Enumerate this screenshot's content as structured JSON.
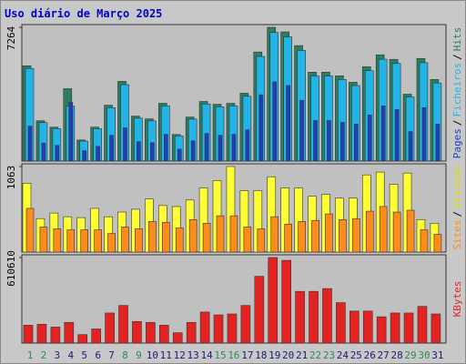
{
  "chart_data": [
    {
      "type": "bar",
      "title": "Uso diário de Março 2025",
      "ylim": [
        0,
        7264
      ],
      "yticks": [
        7264
      ],
      "legend_separator": "/",
      "series": [
        {
          "name": "Pages",
          "color": "#1f3fbf",
          "values": [
            1900,
            980,
            850,
            3184,
            560,
            800,
            1400,
            1800,
            1050,
            1000,
            1450,
            650,
            1100,
            1500,
            1400,
            1450,
            1700,
            3600,
            4300,
            4100,
            3300,
            2200,
            2200,
            2100,
            2000,
            2500,
            3000,
            2800,
            1600,
            2900,
            2000
          ]
        },
        {
          "name": "Ficheiros",
          "color": "#22b4e6",
          "values": [
            5030,
            2090,
            1760,
            2980,
            1080,
            1760,
            2900,
            4150,
            2330,
            2180,
            3000,
            1370,
            2280,
            3100,
            2950,
            3000,
            3520,
            5680,
            6980,
            6740,
            6010,
            4620,
            4620,
            4430,
            4100,
            4910,
            5530,
            5300,
            3480,
            5340,
            4240
          ]
        },
        {
          "name": "Hits",
          "color": "#2a7f5f",
          "values": [
            5174,
            2189,
            1841,
            3931,
            1144,
            1841,
            3035,
            4329,
            2438,
            2289,
            3135,
            1443,
            2388,
            3234,
            3085,
            3135,
            3682,
            5921,
            7264,
            7015,
            6269,
            4826,
            4826,
            4627,
            4279,
            5125,
            5771,
            5523,
            3632,
            5572,
            4428
          ]
        }
      ]
    },
    {
      "type": "bar",
      "ylim": [
        0,
        1063
      ],
      "yticks": [
        1063
      ],
      "legend_separator": "/",
      "series": [
        {
          "name": "Sites",
          "color": "#ff8c1a",
          "values": [
            543,
            312,
            289,
            277,
            277,
            277,
            231,
            312,
            289,
            381,
            370,
            300,
            404,
            358,
            451,
            451,
            312,
            289,
            439,
            347,
            381,
            393,
            474,
            404,
            416,
            508,
            566,
            497,
            520,
            277,
            220
          ]
        },
        {
          "name": "Visitas",
          "color": "#ffff33",
          "values": [
            855,
            416,
            485,
            439,
            428,
            543,
            439,
            497,
            532,
            659,
            578,
            566,
            647,
            797,
            890,
            1063,
            763,
            763,
            936,
            797,
            797,
            693,
            716,
            670,
            670,
            959,
            994,
            843,
            982,
            404,
            358
          ]
        }
      ]
    },
    {
      "type": "bar",
      "ylim": [
        0,
        610610
      ],
      "yticks": [
        610610
      ],
      "categories": [
        "1",
        "2",
        "3",
        "4",
        "5",
        "6",
        "7",
        "8",
        "9",
        "10",
        "11",
        "12",
        "13",
        "14",
        "15",
        "16",
        "17",
        "18",
        "19",
        "20",
        "21",
        "22",
        "23",
        "24",
        "25",
        "26",
        "27",
        "28",
        "29",
        "30",
        "31"
      ],
      "category_colors": [
        "#2a8a5a",
        "#2a8a5a",
        "#1a1a7a",
        "#1a1a7a",
        "#1a1a7a",
        "#1a1a7a",
        "#1a1a7a",
        "#2a8a5a",
        "#2a8a5a",
        "#1a1a7a",
        "#1a1a7a",
        "#1a1a7a",
        "#1a1a7a",
        "#1a1a7a",
        "#2a8a5a",
        "#2a8a5a",
        "#1a1a7a",
        "#1a1a7a",
        "#1a1a7a",
        "#1a1a7a",
        "#1a1a7a",
        "#2a8a5a",
        "#2a8a5a",
        "#1a1a7a",
        "#1a1a7a",
        "#1a1a7a",
        "#1a1a7a",
        "#1a1a7a",
        "#2a8a5a",
        "#2a8a5a",
        "#1a1a7a"
      ],
      "series": [
        {
          "name": "KBytes",
          "color": "#e52222",
          "values": [
            127489,
            134199,
            114069,
            147619,
            60389,
            100649,
            214717,
            268400,
            154330,
            147619,
            127489,
            73810,
            147619,
            221428,
            201298,
            208008,
            268400,
            476411,
            610610,
            590480,
            369046,
            369046,
            389176,
            288530,
            228138,
            228138,
            187879,
            214717,
            214717,
            261689,
            208008
          ]
        }
      ]
    }
  ]
}
